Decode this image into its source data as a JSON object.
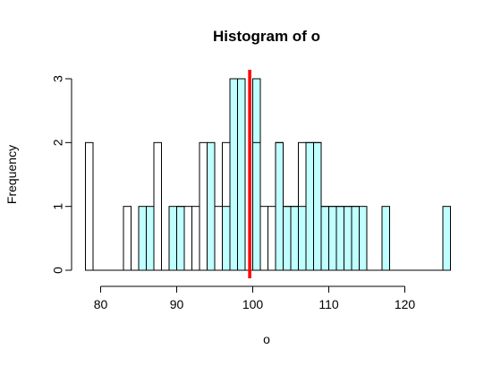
{
  "chart_data": {
    "type": "bar",
    "title": "Histogram of o",
    "xlabel": "o",
    "ylabel": "Frequency",
    "xlim": [
      78,
      126
    ],
    "ylim": [
      0,
      3
    ],
    "bin_width": 1,
    "x_ticks": [
      80,
      90,
      100,
      110,
      120
    ],
    "y_ticks": [
      0,
      1,
      2,
      3
    ],
    "outline_series": {
      "name": "",
      "bin_starts": [
        78,
        83,
        87,
        90,
        91,
        92,
        93,
        95,
        96,
        97,
        98,
        100,
        101,
        102,
        103,
        104,
        105,
        106,
        107,
        108,
        109,
        110,
        111,
        112,
        113
      ],
      "values": [
        2,
        1,
        2,
        1,
        1,
        1,
        2,
        1,
        2,
        3,
        3,
        2,
        1,
        1,
        2,
        1,
        1,
        2,
        2,
        2,
        1,
        1,
        1,
        1,
        1
      ]
    },
    "filled_series": {
      "name": "",
      "bin_starts": [
        85,
        86,
        89,
        90,
        94,
        96,
        97,
        98,
        100,
        103,
        104,
        105,
        106,
        107,
        108,
        109,
        110,
        111,
        112,
        113,
        114,
        117,
        125
      ],
      "values": [
        1,
        1,
        1,
        1,
        2,
        1,
        3,
        3,
        3,
        2,
        1,
        1,
        1,
        2,
        2,
        1,
        1,
        1,
        1,
        1,
        1,
        1,
        1
      ]
    },
    "reference_line": {
      "x": 99.6
    },
    "colors": {
      "filled_bar": "#bfffff",
      "outline": "#000000",
      "reference_line": "#ff0000"
    }
  }
}
